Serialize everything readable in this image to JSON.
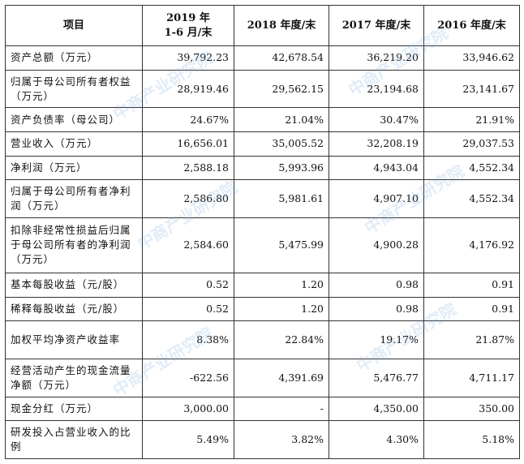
{
  "table": {
    "headers": [
      "项目",
      "2019 年\n1-6 月/末",
      "2018 年度/末",
      "2017 年度/末",
      "2016 年度/末"
    ],
    "rows": [
      {
        "label": "资产总额（万元）",
        "values": [
          "39,792.23",
          "42,678.54",
          "36,219.20",
          "33,946.62"
        ]
      },
      {
        "label": "归属于母公司所有者权益（万元）",
        "values": [
          "28,919.46",
          "29,562.15",
          "23,194.68",
          "23,141.67"
        ]
      },
      {
        "label": "资产负债率（母公司）",
        "values": [
          "24.67%",
          "21.04%",
          "30.47%",
          "21.91%"
        ]
      },
      {
        "label": "营业收入（万元）",
        "values": [
          "16,656.01",
          "35,005.52",
          "32,208.19",
          "29,037.53"
        ]
      },
      {
        "label": "净利润（万元）",
        "values": [
          "2,588.18",
          "5,993.96",
          "4,943.04",
          "4,552.34"
        ]
      },
      {
        "label": "归属于母公司所有者净利润（万元）",
        "values": [
          "2,586.80",
          "5,981.61",
          "4,907.10",
          "4,552.34"
        ]
      },
      {
        "label": "扣除非经常性损益后归属于母公司所有者的净利润（万元）",
        "values": [
          "2,584.60",
          "5,475.99",
          "4,900.28",
          "4,176.92"
        ]
      },
      {
        "label": "基本每股收益（元/股）",
        "values": [
          "0.52",
          "1.20",
          "0.98",
          "0.91"
        ]
      },
      {
        "label": "稀释每股收益（元/股）",
        "values": [
          "0.52",
          "1.20",
          "0.98",
          "0.91"
        ]
      },
      {
        "label": "加权平均净资产收益率",
        "values": [
          "8.38%",
          "22.84%",
          "19.17%",
          "21.87%"
        ]
      },
      {
        "label": "经营活动产生的现金流量净额（万元）",
        "values": [
          "-622.56",
          "4,391.69",
          "5,476.77",
          "4,711.17"
        ]
      },
      {
        "label": "现金分红（万元）",
        "values": [
          "3,000.00",
          "-",
          "4,350.00",
          "350.00"
        ]
      },
      {
        "label": "研发投入占营业收入的比例",
        "values": [
          "5.49%",
          "3.82%",
          "4.30%",
          "5.18%"
        ]
      }
    ]
  },
  "watermark": {
    "text": "中商产业研究院",
    "color": "#78aadc"
  }
}
